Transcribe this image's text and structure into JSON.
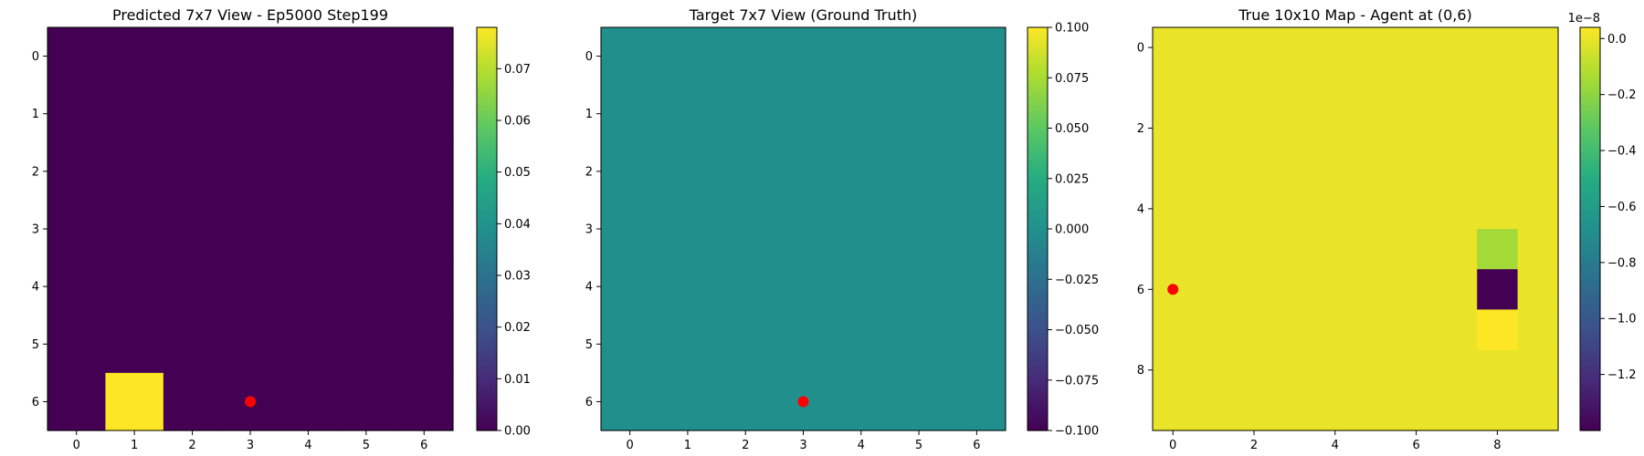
{
  "chart_data": [
    {
      "type": "heatmap",
      "title": "Predicted 7x7 View - Ep5000 Step199",
      "rows": 7,
      "cols": 7,
      "xticks": [
        0,
        1,
        2,
        3,
        4,
        5,
        6
      ],
      "yticks": [
        0,
        1,
        2,
        3,
        4,
        5,
        6
      ],
      "values": [
        [
          0,
          0,
          0,
          0,
          0,
          0,
          0
        ],
        [
          0,
          0,
          0,
          0,
          0,
          0,
          0
        ],
        [
          0,
          0,
          0,
          0,
          0,
          0,
          0
        ],
        [
          0,
          0,
          0,
          0,
          0,
          0,
          0
        ],
        [
          0,
          0,
          0,
          0,
          0,
          0,
          0
        ],
        [
          0,
          0,
          0,
          0,
          0,
          0,
          0
        ],
        [
          0,
          0.078,
          0,
          0,
          0,
          0,
          0
        ]
      ],
      "vmin": 0,
      "vmax": 0.078,
      "colormap": "viridis",
      "colorbar_ticks": [
        "0.00",
        "0.01",
        "0.02",
        "0.03",
        "0.04",
        "0.05",
        "0.06",
        "0.07"
      ],
      "colorbar_offset": "",
      "marker": {
        "x": 3,
        "y": 6,
        "color": "#ff0000"
      }
    },
    {
      "type": "heatmap",
      "title": "Target 7x7 View (Ground Truth)",
      "rows": 7,
      "cols": 7,
      "xticks": [
        0,
        1,
        2,
        3,
        4,
        5,
        6
      ],
      "yticks": [
        0,
        1,
        2,
        3,
        4,
        5,
        6
      ],
      "values": [
        [
          0,
          0,
          0,
          0,
          0,
          0,
          0
        ],
        [
          0,
          0,
          0,
          0,
          0,
          0,
          0
        ],
        [
          0,
          0,
          0,
          0,
          0,
          0,
          0
        ],
        [
          0,
          0,
          0,
          0,
          0,
          0,
          0
        ],
        [
          0,
          0,
          0,
          0,
          0,
          0,
          0
        ],
        [
          0,
          0,
          0,
          0,
          0,
          0,
          0
        ],
        [
          0,
          0,
          0,
          0,
          0,
          0,
          0
        ]
      ],
      "vmin": -0.1,
      "vmax": 0.1,
      "colormap": "viridis",
      "colorbar_ticks": [
        "0.100",
        "0.075",
        "0.050",
        "0.025",
        "0.000",
        "−0.025",
        "−0.050",
        "−0.075",
        "−0.100"
      ],
      "colorbar_offset": "",
      "marker": {
        "x": 3,
        "y": 6,
        "color": "#ff0000"
      }
    },
    {
      "type": "heatmap",
      "title": "True 10x10 Map - Agent at (0,6)",
      "rows": 10,
      "cols": 10,
      "xticks": [
        0,
        2,
        4,
        6,
        8
      ],
      "yticks": [
        0,
        2,
        4,
        6,
        8
      ],
      "values": [
        [
          0,
          0,
          0,
          0,
          0,
          0,
          0,
          0,
          0,
          0
        ],
        [
          0,
          0,
          0,
          0,
          0,
          0,
          0,
          0,
          0,
          0
        ],
        [
          0,
          0,
          0,
          0,
          0,
          0,
          0,
          0,
          0,
          0
        ],
        [
          0,
          0,
          0,
          0,
          0,
          0,
          0,
          0,
          0,
          0
        ],
        [
          0,
          0,
          0,
          0,
          0,
          0,
          0,
          0,
          0,
          0
        ],
        [
          0,
          0,
          0,
          0,
          0,
          0,
          0,
          0,
          -0.15,
          0
        ],
        [
          0,
          0,
          0,
          0,
          0,
          0,
          0,
          0,
          -1.4,
          0
        ],
        [
          0,
          0,
          0,
          0,
          0,
          0,
          0,
          0,
          0.04,
          0
        ],
        [
          0,
          0,
          0,
          0,
          0,
          0,
          0,
          0,
          0,
          0
        ],
        [
          0,
          0,
          0,
          0,
          0,
          0,
          0,
          0,
          0,
          0
        ]
      ],
      "vmin": -1.4,
      "vmax": 0.04,
      "colormap": "viridis",
      "colorbar_ticks": [
        "0.0",
        "−0.2",
        "−0.4",
        "−0.6",
        "−0.8",
        "−1.0",
        "−1.2"
      ],
      "colorbar_tick_values": [
        0.0,
        -0.2,
        -0.4,
        -0.6,
        -0.8,
        -1.0,
        -1.2
      ],
      "colorbar_offset": "1e−8",
      "marker": {
        "x": 0,
        "y": 6,
        "color": "#ff0000"
      }
    }
  ]
}
